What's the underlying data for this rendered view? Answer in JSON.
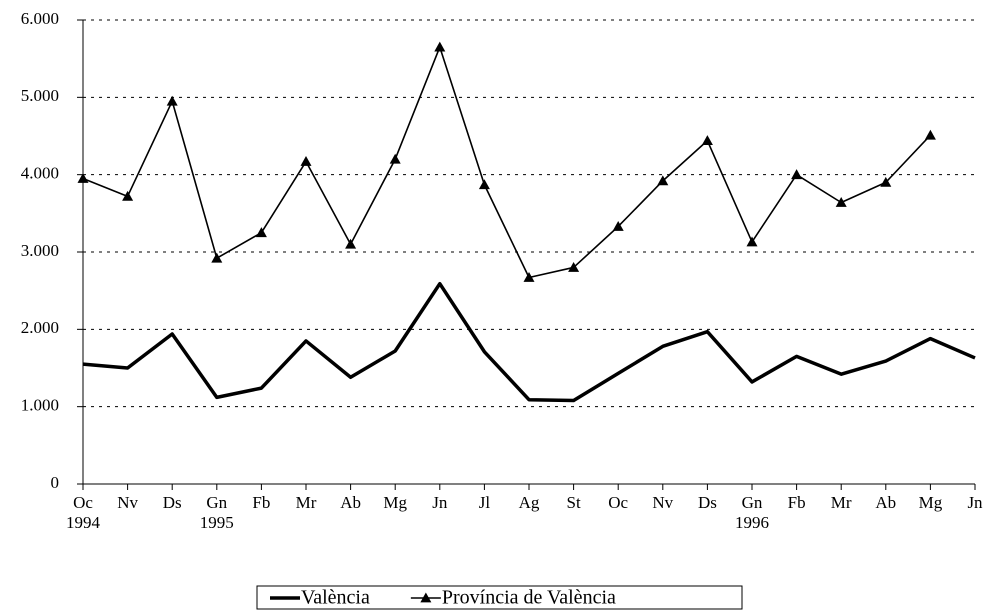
{
  "chart_data": {
    "type": "line",
    "categories": [
      "Oc",
      "Nv",
      "Ds",
      "Gn",
      "Fb",
      "Mr",
      "Ab",
      "Mg",
      "Jn",
      "Jl",
      "Ag",
      "St",
      "Oc",
      "Nv",
      "Ds",
      "Gn",
      "Fb",
      "Mr",
      "Ab",
      "Mg",
      "Jn"
    ],
    "category_years": [
      "1994",
      null,
      null,
      "1995",
      null,
      null,
      null,
      null,
      null,
      null,
      null,
      null,
      null,
      null,
      null,
      "1996",
      null,
      null,
      null,
      null,
      null
    ],
    "series": [
      {
        "name": "València",
        "color": "#000000",
        "marker": "none",
        "values": [
          1550,
          1500,
          1940,
          1120,
          1240,
          1850,
          1380,
          1720,
          2590,
          1710,
          1090,
          1080,
          1430,
          1780,
          1970,
          1320,
          1650,
          1420,
          1590,
          1880,
          1630
        ]
      },
      {
        "name": "Província de València",
        "color": "#000000",
        "marker": "triangle",
        "values": [
          3950,
          3720,
          4950,
          2920,
          3250,
          4170,
          3100,
          4200,
          5650,
          3870,
          2670,
          2800,
          3330,
          3920,
          4440,
          3130,
          4000,
          3640,
          3900,
          4510,
          null
        ]
      }
    ],
    "ylim": [
      0,
      6000
    ],
    "yticks": [
      0,
      {
        "value": 1000,
        "label": "1.000"
      },
      {
        "value": 2000,
        "label": "2.000"
      },
      {
        "value": 3000,
        "label": "3.000"
      },
      {
        "value": 4000,
        "label": "4.000"
      },
      {
        "value": 5000,
        "label": "5.000"
      },
      {
        "value": 6000,
        "label": "6.000"
      }
    ],
    "grid": true,
    "legend": "bottom"
  }
}
